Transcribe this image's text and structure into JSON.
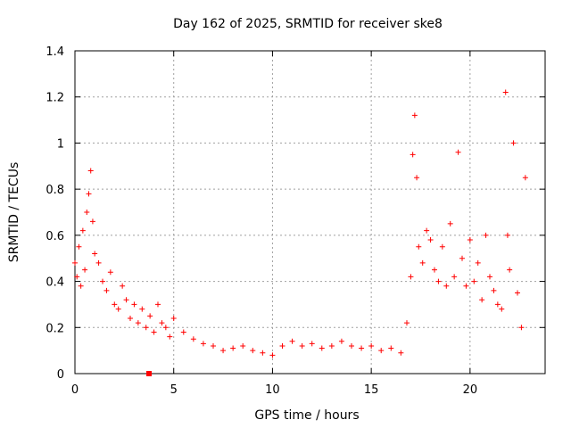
{
  "chart_data": {
    "type": "scatter",
    "title": "Day 162 of 2025, SRMTID for receiver ske8",
    "xlabel": "GPS time / hours",
    "ylabel": "SRMTID / TECUs",
    "xlim": [
      0,
      23.8
    ],
    "ylim": [
      0,
      1.4
    ],
    "grid": true,
    "x_ticks": [
      "0",
      "5",
      "10",
      "15",
      "20"
    ],
    "y_ticks": [
      "0",
      "0.2",
      "0.4",
      "0.6",
      "0.8",
      "1",
      "1.2",
      "1.4"
    ],
    "marker": "+",
    "marker_color": "#ff0000",
    "series": [
      {
        "name": "SRMTID",
        "x": [
          0.0,
          0.1,
          0.2,
          0.3,
          0.4,
          0.5,
          0.6,
          0.7,
          0.8,
          0.9,
          1.0,
          1.2,
          1.4,
          1.6,
          1.8,
          2.0,
          2.2,
          2.4,
          2.6,
          2.8,
          3.0,
          3.2,
          3.4,
          3.6,
          3.8,
          4.0,
          4.2,
          4.4,
          4.6,
          4.8,
          5.0,
          5.5,
          6.0,
          6.5,
          7.0,
          7.5,
          8.0,
          8.5,
          9.0,
          9.5,
          10.0,
          10.5,
          11.0,
          11.5,
          12.0,
          12.5,
          13.0,
          13.5,
          14.0,
          14.5,
          15.0,
          15.5,
          16.0,
          16.5,
          16.8,
          17.0,
          17.1,
          17.2,
          17.3,
          17.4,
          17.6,
          17.8,
          18.0,
          18.2,
          18.4,
          18.6,
          18.8,
          19.0,
          19.2,
          19.4,
          19.6,
          19.8,
          20.0,
          20.2,
          20.4,
          20.6,
          20.8,
          21.0,
          21.2,
          21.4,
          21.6,
          21.8,
          21.9,
          22.0,
          22.2,
          22.4,
          22.6,
          22.8
        ],
        "y": [
          0.48,
          0.42,
          0.55,
          0.38,
          0.62,
          0.45,
          0.7,
          0.78,
          0.88,
          0.66,
          0.52,
          0.48,
          0.4,
          0.36,
          0.44,
          0.3,
          0.28,
          0.38,
          0.32,
          0.24,
          0.3,
          0.22,
          0.28,
          0.2,
          0.25,
          0.18,
          0.3,
          0.22,
          0.2,
          0.16,
          0.24,
          0.18,
          0.15,
          0.13,
          0.12,
          0.1,
          0.11,
          0.12,
          0.1,
          0.09,
          0.08,
          0.12,
          0.14,
          0.12,
          0.13,
          0.11,
          0.12,
          0.14,
          0.12,
          0.11,
          0.12,
          0.1,
          0.11,
          0.09,
          0.22,
          0.42,
          0.95,
          1.12,
          0.85,
          0.55,
          0.48,
          0.62,
          0.58,
          0.45,
          0.4,
          0.55,
          0.38,
          0.65,
          0.42,
          0.96,
          0.5,
          0.38,
          0.58,
          0.4,
          0.48,
          0.32,
          0.6,
          0.42,
          0.36,
          0.3,
          0.28,
          1.22,
          0.6,
          0.45,
          1.0,
          0.35,
          0.2,
          0.85
        ]
      },
      {
        "name": "marker",
        "x": [
          3.75
        ],
        "y": [
          0.0
        ]
      }
    ]
  }
}
